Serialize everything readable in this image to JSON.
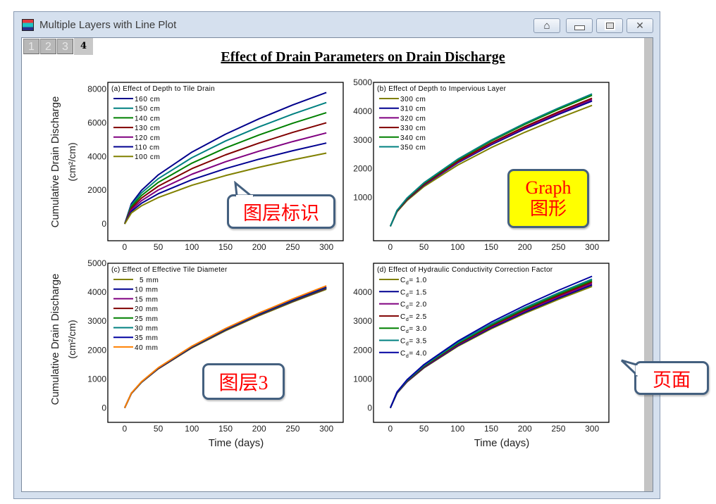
{
  "window": {
    "title": "Multiple Layers with Line Plot",
    "icon": "origin-graph-icon",
    "buttons": {
      "home": "⌂",
      "minimize": "▭",
      "maximize": "▣",
      "close": "✕"
    }
  },
  "layer_tabs": [
    "1",
    "2",
    "3",
    "4"
  ],
  "active_layer": "4",
  "page_title": "Effect of Drain Parameters on Drain Discharge",
  "annotations": {
    "layer_id": "图层标识",
    "graph_en": "Graph",
    "graph_cn": "图形",
    "layer3": "图层3",
    "page": "页面"
  },
  "colors": {
    "callout_border": "#44607f",
    "callout_text": "#ff0000",
    "graph_callout_bg": "#ffff00"
  },
  "chart_data": [
    {
      "type": "line",
      "legend_title": "(a) Effect of Depth to Tile Drain",
      "ylabel": "Cumulative Drain Discharge",
      "yunit": "(cm²/cm)",
      "xlabel": "",
      "xlim": [
        -25,
        325
      ],
      "ylim": [
        -1000,
        8400
      ],
      "xticks": [
        0,
        50,
        100,
        150,
        200,
        250,
        300
      ],
      "yticks": [
        0,
        2000,
        4000,
        6000,
        8000
      ],
      "legend": "top-left",
      "x": [
        0,
        10,
        25,
        50,
        100,
        150,
        200,
        250,
        300
      ],
      "series": [
        {
          "name": "160 cm",
          "color": "#00008b",
          "values": [
            0,
            1201,
            1989,
            2909,
            4259,
            5327,
            6240,
            7059,
            7800
          ]
        },
        {
          "name": "150 cm",
          "color": "#008080",
          "values": [
            0,
            1109,
            1836,
            2686,
            3931,
            4918,
            5760,
            6516,
            7200
          ]
        },
        {
          "name": "140 cm",
          "color": "#008000",
          "values": [
            0,
            1016,
            1683,
            2462,
            3604,
            4508,
            5280,
            5973,
            6600
          ]
        },
        {
          "name": "130 cm",
          "color": "#800000",
          "values": [
            0,
            924,
            1530,
            2238,
            3276,
            4098,
            4800,
            5430,
            6000
          ]
        },
        {
          "name": "120 cm",
          "color": "#800080",
          "values": [
            0,
            832,
            1377,
            2014,
            2948,
            3688,
            4320,
            4887,
            5400
          ]
        },
        {
          "name": "110 cm",
          "color": "#000090",
          "values": [
            0,
            739,
            1224,
            1790,
            2621,
            3278,
            3840,
            4344,
            4800
          ]
        },
        {
          "name": "100 cm",
          "color": "#808000",
          "values": [
            0,
            647,
            1071,
            1567,
            2293,
            2869,
            3360,
            3801,
            4200
          ]
        }
      ]
    },
    {
      "type": "line",
      "legend_title": "(b) Effect of Depth to Impervious Layer",
      "ylabel": "",
      "yunit": "",
      "xlabel": "",
      "xlim": [
        -25,
        325
      ],
      "ylim": [
        -500,
        5000
      ],
      "xticks": [
        0,
        50,
        100,
        150,
        200,
        250,
        300
      ],
      "yticks": [
        1000,
        2000,
        3000,
        4000,
        5000
      ],
      "legend": "top-left",
      "x": [
        0,
        10,
        25,
        50,
        100,
        150,
        200,
        250,
        300
      ],
      "series": [
        {
          "name": "300 cm",
          "color": "#808000",
          "values": [
            0,
            508,
            899,
            1382,
            2125,
            2734,
            3268,
            3751,
            4200
          ]
        },
        {
          "name": "310 cm",
          "color": "#000090",
          "values": [
            0,
            526,
            931,
            1431,
            2201,
            2832,
            3384,
            3885,
            4350
          ]
        },
        {
          "name": "320 cm",
          "color": "#800080",
          "values": [
            0,
            532,
            942,
            1448,
            2226,
            2864,
            3423,
            3929,
            4400
          ]
        },
        {
          "name": "330 cm",
          "color": "#800000",
          "values": [
            0,
            538,
            952,
            1464,
            2252,
            2897,
            3462,
            3974,
            4450
          ]
        },
        {
          "name": "340 cm",
          "color": "#008000",
          "values": [
            0,
            551,
            974,
            1497,
            2302,
            2962,
            3540,
            4063,
            4550
          ]
        },
        {
          "name": "350 cm",
          "color": "#008080",
          "values": [
            0,
            557,
            984,
            1513,
            2328,
            2995,
            3579,
            4108,
            4600
          ]
        }
      ]
    },
    {
      "type": "line",
      "legend_title": "(c) Effect of Effective Tile Diameter",
      "ylabel": "Cumulative Drain Discharge",
      "yunit": "(cm²/cm)",
      "xlabel": "Time (days)",
      "xlim": [
        -25,
        325
      ],
      "ylim": [
        -500,
        5000
      ],
      "xticks": [
        0,
        50,
        100,
        150,
        200,
        250,
        300
      ],
      "yticks": [
        0,
        1000,
        2000,
        3000,
        4000,
        5000
      ],
      "legend": "top-left",
      "x": [
        0,
        10,
        25,
        50,
        100,
        150,
        200,
        250,
        300
      ],
      "series": [
        {
          "name": "5 mm",
          "color": "#808000",
          "values": [
            0,
            496,
            877,
            1349,
            2075,
            2669,
            3190,
            3661,
            4100
          ]
        },
        {
          "name": "10 mm",
          "color": "#000090",
          "values": [
            0,
            500,
            884,
            1359,
            2090,
            2689,
            3213,
            3688,
            4130
          ]
        },
        {
          "name": "15 mm",
          "color": "#800080",
          "values": [
            0,
            501,
            886,
            1362,
            2095,
            2695,
            3221,
            3697,
            4140
          ]
        },
        {
          "name": "20 mm",
          "color": "#800000",
          "values": [
            0,
            502,
            888,
            1365,
            2100,
            2702,
            3229,
            3706,
            4150
          ]
        },
        {
          "name": "25 mm",
          "color": "#008000",
          "values": [
            0,
            503,
            890,
            1369,
            2105,
            2708,
            3236,
            3715,
            4160
          ]
        },
        {
          "name": "30 mm",
          "color": "#008080",
          "values": [
            0,
            505,
            892,
            1372,
            2110,
            2715,
            3244,
            3724,
            4170
          ]
        },
        {
          "name": "35 mm",
          "color": "#0000a0",
          "values": [
            0,
            506,
            895,
            1375,
            2115,
            2721,
            3252,
            3733,
            4180
          ]
        },
        {
          "name": "40 mm",
          "color": "#ff8000",
          "values": [
            0,
            511,
            903,
            1388,
            2135,
            2747,
            3283,
            3768,
            4220
          ]
        }
      ]
    },
    {
      "type": "line",
      "legend_title": "(d) Effect of Hydraulic Conductivity Correction Factor",
      "ylabel": "",
      "yunit": "",
      "xlabel": "Time (days)",
      "xlim": [
        -25,
        325
      ],
      "ylim": [
        -500,
        5000
      ],
      "xticks": [
        0,
        50,
        100,
        150,
        200,
        250,
        300
      ],
      "yticks": [
        0,
        1000,
        2000,
        3000,
        4000
      ],
      "legend": "top-left",
      "x": [
        0,
        10,
        25,
        50,
        100,
        150,
        200,
        250,
        300
      ],
      "series": [
        {
          "name": "Cd= 1.0",
          "color": "#808000",
          "values": [
            0,
            508,
            899,
            1382,
            2125,
            2734,
            3268,
            3751,
            4200
          ]
        },
        {
          "name": "Cd= 1.5",
          "color": "#000090",
          "values": [
            0,
            514,
            910,
            1398,
            2151,
            2767,
            3307,
            3795,
            4250
          ]
        },
        {
          "name": "Cd= 2.0",
          "color": "#800080",
          "values": [
            0,
            520,
            920,
            1415,
            2176,
            2799,
            3346,
            3840,
            4300
          ]
        },
        {
          "name": "Cd= 2.5",
          "color": "#800000",
          "values": [
            0,
            526,
            931,
            1431,
            2201,
            2832,
            3384,
            3885,
            4350
          ]
        },
        {
          "name": "Cd= 3.0",
          "color": "#008000",
          "values": [
            0,
            532,
            942,
            1448,
            2226,
            2864,
            3423,
            3929,
            4400
          ]
        },
        {
          "name": "Cd= 3.5",
          "color": "#008080",
          "values": [
            0,
            538,
            952,
            1464,
            2252,
            2897,
            3462,
            3974,
            4450
          ]
        },
        {
          "name": "Cd= 4.0",
          "color": "#0000a0",
          "values": [
            0,
            551,
            974,
            1497,
            2302,
            2962,
            3540,
            4063,
            4550
          ]
        }
      ]
    }
  ]
}
